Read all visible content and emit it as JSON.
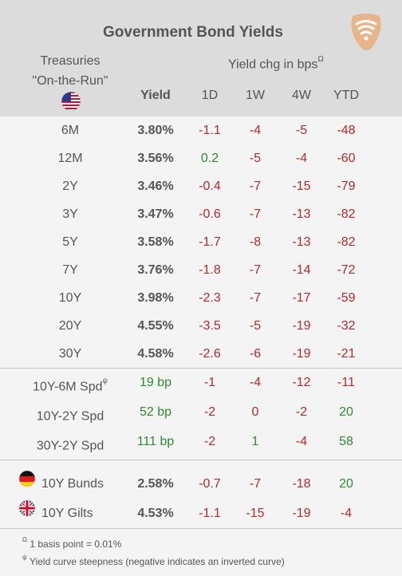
{
  "title": "Government Bond Yields",
  "header": {
    "treasuries_line1": "Treasuries",
    "treasuries_line2": "\"On-the-Run\"",
    "yield_chg_label": "Yield chg in bps",
    "yield_chg_sup": "Ω",
    "columns": {
      "yield": "Yield",
      "d1": "1D",
      "w1": "1W",
      "w4": "4W",
      "ytd": "YTD"
    }
  },
  "treasuries": [
    {
      "label": "6M",
      "yield": "3.80%",
      "d1": "-1.1",
      "w1": "-4",
      "w4": "-5",
      "ytd": "-48"
    },
    {
      "label": "12M",
      "yield": "3.56%",
      "d1": "0.2",
      "w1": "-5",
      "w4": "-4",
      "ytd": "-60"
    },
    {
      "label": "2Y",
      "yield": "3.46%",
      "d1": "-0.4",
      "w1": "-7",
      "w4": "-15",
      "ytd": "-79"
    },
    {
      "label": "3Y",
      "yield": "3.47%",
      "d1": "-0.6",
      "w1": "-7",
      "w4": "-13",
      "ytd": "-82"
    },
    {
      "label": "5Y",
      "yield": "3.58%",
      "d1": "-1.7",
      "w1": "-8",
      "w4": "-13",
      "ytd": "-82"
    },
    {
      "label": "7Y",
      "yield": "3.76%",
      "d1": "-1.8",
      "w1": "-7",
      "w4": "-14",
      "ytd": "-72"
    },
    {
      "label": "10Y",
      "yield": "3.98%",
      "d1": "-2.3",
      "w1": "-7",
      "w4": "-17",
      "ytd": "-59"
    },
    {
      "label": "20Y",
      "yield": "4.55%",
      "d1": "-3.5",
      "w1": "-5",
      "w4": "-19",
      "ytd": "-32"
    },
    {
      "label": "30Y",
      "yield": "4.58%",
      "d1": "-2.6",
      "w1": "-6",
      "w4": "-19",
      "ytd": "-21"
    }
  ],
  "spreads": [
    {
      "label": "10Y-6M Spd",
      "sup": "ψ",
      "yield": "19 bp",
      "d1": "-1",
      "w1": "-4",
      "w4": "-12",
      "ytd": "-11"
    },
    {
      "label": "10Y-2Y Spd",
      "sup": "",
      "yield": "52 bp",
      "d1": "-2",
      "w1": "0",
      "w4": "-2",
      "ytd": "20"
    },
    {
      "label": "30Y-2Y Spd",
      "sup": "",
      "yield": "111 bp",
      "d1": "-2",
      "w1": "1",
      "w4": "-4",
      "ytd": "58"
    }
  ],
  "international": [
    {
      "label": "10Y Bunds",
      "flag": "germany-flag-icon",
      "yield": "2.58%",
      "d1": "-0.7",
      "w1": "-7",
      "w4": "-18",
      "ytd": "20"
    },
    {
      "label": "10Y Gilts",
      "flag": "uk-flag-icon",
      "yield": "4.53%",
      "d1": "-1.1",
      "w1": "-15",
      "w4": "-19",
      "ytd": "-4"
    }
  ],
  "footnotes": [
    {
      "sym": "Ω",
      "text": " 1 basis point = 0.01%"
    },
    {
      "sym": "ψ",
      "text": " Yield curve steepness (negative indicates an inverted curve)"
    }
  ],
  "colors": {
    "negative": "#b52a2a",
    "positive": "#2e8b2e",
    "header_bg": "#dcdcdc",
    "body_bg": "#f4f4f4",
    "logo": "#e8b48a"
  }
}
